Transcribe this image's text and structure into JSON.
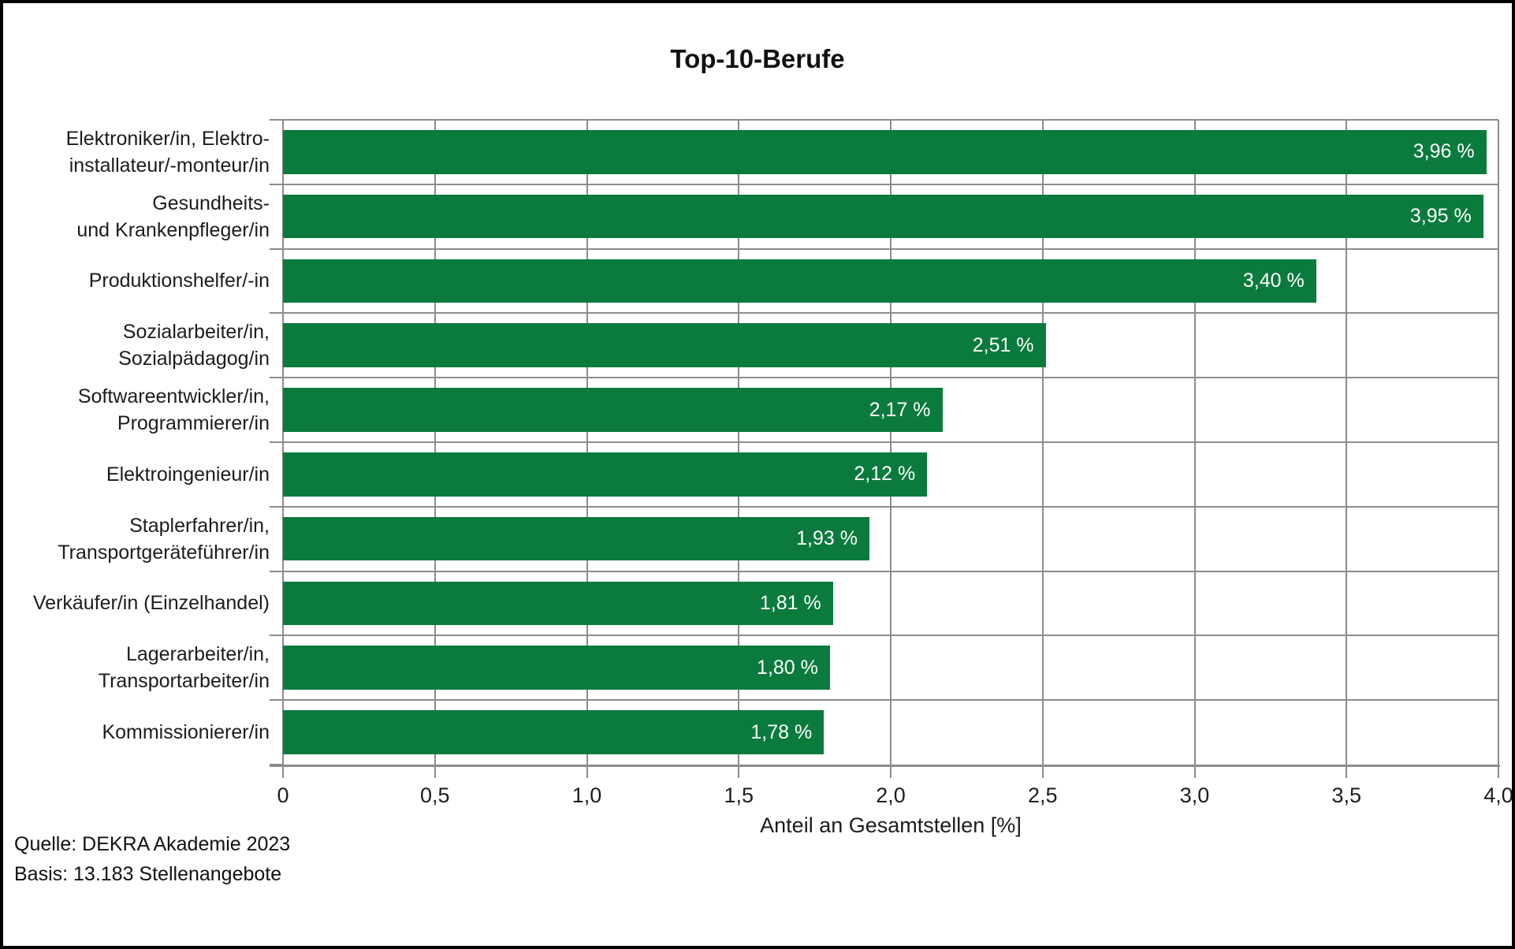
{
  "title": "Top-10-Berufe",
  "chart_data": {
    "type": "bar",
    "orientation": "horizontal",
    "title": "Top-10-Berufe",
    "categories": [
      "Elektroniker/in, Elektro-\ninstallateur/-monteur/in",
      "Gesundheits-\nund Krankenpfleger/in",
      "Produktionshelfer/-in",
      "Sozialarbeiter/in,\nSozialpädagog/in",
      "Softwareentwickler/in,\nProgrammierer/in",
      "Elektroingenieur/in",
      "Staplerfahrer/in,\nTransportgeräteführer/in",
      "Verkäufer/in (Einzelhandel)",
      "Lagerarbeiter/in,\nTransportarbeiter/in",
      "Kommissionierer/in"
    ],
    "values": [
      3.96,
      3.95,
      3.4,
      2.51,
      2.17,
      2.12,
      1.93,
      1.81,
      1.8,
      1.78
    ],
    "value_labels": [
      "3,96 %",
      "3,95 %",
      "3,40 %",
      "2,51 %",
      "2,17 %",
      "2,12 %",
      "1,93 %",
      "1,81 %",
      "1,80 %",
      "1,78 %"
    ],
    "xlabel": "Anteil an Gesamtstellen [%]",
    "xlim": [
      0,
      4.0
    ],
    "x_ticks": [
      0,
      0.5,
      1.0,
      1.5,
      2.0,
      2.5,
      3.0,
      3.5,
      4.0
    ],
    "x_tick_labels": [
      "0",
      "0,5",
      "1,0",
      "1,5",
      "2,0",
      "2,5",
      "3,0",
      "3,5",
      "4,0"
    ],
    "grid": true,
    "legend": false,
    "bar_color": "#0a7b3d"
  },
  "footer": {
    "source": "Quelle: DEKRA Akademie 2023",
    "basis": "Basis: 13.183 Stellenangebote"
  },
  "colors": {
    "bar_green": "#0a7b3d",
    "gridline_gray": "#8c8c8c",
    "value_text": "#ffffff",
    "text": "#1a1a1a",
    "frame_border": "#000000",
    "background": "#ffffff"
  }
}
